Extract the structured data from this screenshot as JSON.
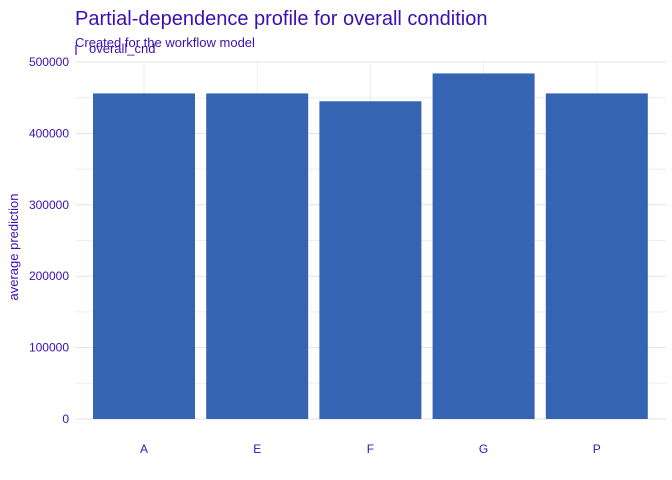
{
  "chart_data": {
    "type": "bar",
    "title": "Partial-dependence profile for overall condition",
    "subtitle": "Created for the workflow model",
    "facet_label": "overall_cnd",
    "xlabel": "",
    "ylabel": "average prediction",
    "categories": [
      "A",
      "E",
      "F",
      "G",
      "P"
    ],
    "values": [
      456000,
      456000,
      445000,
      484000,
      456000
    ],
    "ylim": [
      0,
      500000
    ],
    "yticks": [
      0,
      100000,
      200000,
      300000,
      400000,
      500000
    ],
    "grid": true,
    "legend": "none",
    "bar_color": "#3464B2",
    "text_color": "#3B0FB3",
    "grid_color": "#E3E3E3"
  }
}
